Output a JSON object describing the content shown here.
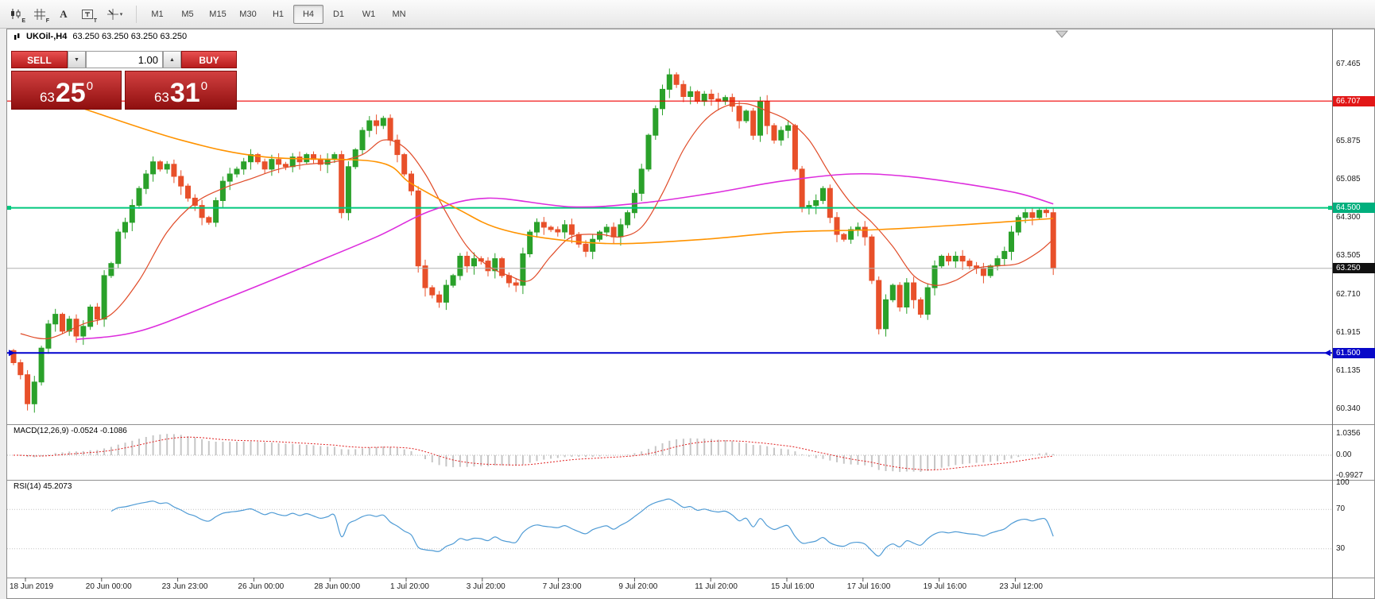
{
  "toolbar": {
    "icons": [
      {
        "name": "chart-candles-icon",
        "letter": "E"
      },
      {
        "name": "grid-icon",
        "letter": "F"
      },
      {
        "name": "font-icon",
        "letter": "A"
      },
      {
        "name": "textbox-icon",
        "letter": "T"
      },
      {
        "name": "cursor-mode-icon",
        "letter": ""
      }
    ],
    "timeframes": [
      "M1",
      "M5",
      "M15",
      "M30",
      "H1",
      "H4",
      "D1",
      "W1",
      "MN"
    ],
    "active_timeframe": "H4"
  },
  "chart": {
    "title_symbol": "UKOil-,H4",
    "title_ohlc": "63.250 63.250 63.250 63.250",
    "trade_panel": {
      "sell": "SELL",
      "buy": "BUY",
      "volume": "1.00",
      "caret_down": "▼",
      "caret_up": "▲",
      "bid": {
        "small": "63",
        "big": "25",
        "sup": "0"
      },
      "ask": {
        "small": "63",
        "big": "31",
        "sup": "0"
      }
    },
    "y_axis": {
      "regular": [
        "67.465",
        "65.875",
        "65.085",
        "64.300",
        "63.505",
        "62.710",
        "61.915",
        "61.135",
        "60.340"
      ],
      "badges": [
        {
          "text": "66.707",
          "bg": "#e21717"
        },
        {
          "text": "64.500",
          "bg": "#00af7d"
        },
        {
          "text": "63.250",
          "bg": "#111111"
        },
        {
          "text": "61.500",
          "bg": "#0808c8"
        }
      ]
    }
  },
  "macd": {
    "label": "MACD(12,26,9) -0.0524 -0.1086",
    "axis": [
      "1.0356",
      "0.00",
      "-0.9927"
    ]
  },
  "rsi": {
    "label": "RSI(14) 45.2073",
    "axis": [
      "100",
      "70",
      "30"
    ]
  },
  "time_axis": {
    "labels": [
      "18 Jun 2019",
      "20 Jun 00:00",
      "23 Jun 23:00",
      "26 Jun 00:00",
      "28 Jun 00:00",
      "1 Jul 20:00",
      "3 Jul 20:00",
      "7 Jul 23:00",
      "9 Jul 20:00",
      "11 Jul 20:00",
      "15 Jul 16:00",
      "17 Jul 16:00",
      "19 Jul 16:00",
      "23 Jul 12:00"
    ]
  },
  "chart_data": {
    "type": "candlestick",
    "symbol": "UKOil-",
    "timeframe": "H4",
    "y_range": [
      60.03,
      68.17
    ],
    "open_first": 61.55,
    "closes": [
      61.3,
      61.05,
      60.45,
      60.9,
      61.6,
      62.1,
      62.3,
      61.95,
      62.2,
      61.85,
      62.05,
      62.45,
      62.2,
      63.1,
      63.35,
      64.0,
      64.2,
      64.55,
      64.9,
      65.2,
      65.45,
      65.3,
      65.4,
      65.15,
      64.95,
      64.7,
      64.55,
      64.3,
      64.2,
      64.65,
      65.05,
      65.2,
      65.3,
      65.45,
      65.6,
      65.45,
      65.3,
      65.5,
      65.4,
      65.35,
      65.55,
      65.45,
      65.6,
      65.5,
      65.4,
      65.5,
      65.6,
      64.4,
      65.35,
      65.7,
      66.1,
      66.3,
      66.2,
      66.35,
      65.9,
      65.6,
      65.2,
      64.85,
      63.3,
      62.85,
      62.7,
      62.55,
      62.9,
      63.1,
      63.5,
      63.3,
      63.45,
      63.4,
      63.2,
      63.45,
      63.1,
      62.95,
      62.9,
      63.55,
      64.0,
      64.2,
      64.1,
      64.05,
      64.0,
      64.15,
      63.95,
      63.75,
      63.6,
      63.85,
      64.0,
      64.1,
      63.9,
      64.15,
      64.4,
      64.8,
      65.3,
      66.0,
      66.55,
      66.95,
      67.25,
      67.05,
      66.8,
      66.9,
      66.7,
      66.85,
      66.75,
      66.7,
      66.78,
      66.6,
      66.3,
      66.5,
      66.0,
      66.7,
      66.2,
      65.9,
      66.1,
      66.2,
      65.3,
      64.5,
      64.55,
      64.65,
      64.9,
      64.3,
      63.95,
      63.85,
      64.05,
      64.1,
      63.9,
      63.0,
      62.0,
      62.6,
      62.9,
      62.45,
      62.95,
      62.6,
      62.3,
      62.85,
      63.3,
      63.5,
      63.4,
      63.5,
      63.4,
      63.3,
      63.25,
      63.1,
      63.3,
      63.45,
      63.6,
      64.0,
      64.3,
      64.4,
      64.3,
      64.45,
      64.4,
      63.25
    ],
    "levels": [
      {
        "price": 66.707,
        "color": "#f00000",
        "width": 1.2,
        "ends": "none"
      },
      {
        "price": 64.5,
        "color": "#00c87d",
        "width": 2,
        "ends": "square"
      },
      {
        "price": 63.25,
        "color": "#b0b0b0",
        "width": 1,
        "ends": "none"
      },
      {
        "price": 61.5,
        "color": "#0000cd",
        "width": 2,
        "ends": "arrow"
      }
    ],
    "ma_orange": [
      [
        10,
        66.55
      ],
      [
        24,
        65.9
      ],
      [
        36,
        65.55
      ],
      [
        52,
        65.45
      ],
      [
        57,
        65.0
      ],
      [
        64,
        64.45
      ],
      [
        69,
        64.1
      ],
      [
        76,
        63.88
      ],
      [
        86,
        63.76
      ],
      [
        99,
        63.85
      ],
      [
        111,
        64.0
      ],
      [
        124,
        64.05
      ],
      [
        136,
        64.15
      ],
      [
        149,
        64.28
      ]
    ],
    "ma_magenta": [
      [
        9,
        61.78
      ],
      [
        18,
        61.95
      ],
      [
        30,
        62.6
      ],
      [
        42,
        63.3
      ],
      [
        52,
        63.9
      ],
      [
        60,
        64.45
      ],
      [
        68,
        64.7
      ],
      [
        80,
        64.52
      ],
      [
        90,
        64.6
      ],
      [
        100,
        64.8
      ],
      [
        110,
        65.05
      ],
      [
        120,
        65.2
      ],
      [
        128,
        65.15
      ],
      [
        136,
        65.0
      ],
      [
        144,
        64.8
      ],
      [
        149,
        64.58
      ]
    ],
    "ma_red": [
      [
        1,
        61.9
      ],
      [
        5,
        61.8
      ],
      [
        10,
        62.1
      ],
      [
        14,
        62.3
      ],
      [
        18,
        63.0
      ],
      [
        22,
        64.0
      ],
      [
        26,
        64.6
      ],
      [
        30,
        64.9
      ],
      [
        34,
        65.1
      ],
      [
        38,
        65.3
      ],
      [
        42,
        65.4
      ],
      [
        46,
        65.45
      ],
      [
        50,
        65.6
      ],
      [
        53,
        65.9
      ],
      [
        56,
        65.75
      ],
      [
        59,
        65.2
      ],
      [
        62,
        64.4
      ],
      [
        65,
        63.7
      ],
      [
        68,
        63.3
      ],
      [
        71,
        63.1
      ],
      [
        74,
        63.0
      ],
      [
        77,
        63.5
      ],
      [
        80,
        63.9
      ],
      [
        84,
        63.95
      ],
      [
        87,
        63.9
      ],
      [
        90,
        64.1
      ],
      [
        93,
        64.8
      ],
      [
        96,
        65.7
      ],
      [
        99,
        66.3
      ],
      [
        102,
        66.6
      ],
      [
        105,
        66.65
      ],
      [
        108,
        66.5
      ],
      [
        111,
        66.3
      ],
      [
        114,
        65.9
      ],
      [
        117,
        65.2
      ],
      [
        120,
        64.6
      ],
      [
        123,
        64.2
      ],
      [
        126,
        63.7
      ],
      [
        129,
        63.1
      ],
      [
        132,
        62.9
      ],
      [
        135,
        63.0
      ],
      [
        138,
        63.25
      ],
      [
        141,
        63.3
      ],
      [
        144,
        63.35
      ],
      [
        147,
        63.6
      ],
      [
        149,
        63.85
      ]
    ],
    "macd_params": {
      "fast": 12,
      "slow": 26,
      "signal": 9
    },
    "rsi_period": 14,
    "colors": {
      "up": "#2aa12a",
      "down": "#e8502a",
      "ma_orange": "#ff9300",
      "ma_magenta": "#dd2ddd",
      "ma_red": "#e04b28",
      "macd_bar": "#c6c6c6",
      "macd_signal": "#e02020",
      "rsi": "#4f9bd5"
    }
  }
}
